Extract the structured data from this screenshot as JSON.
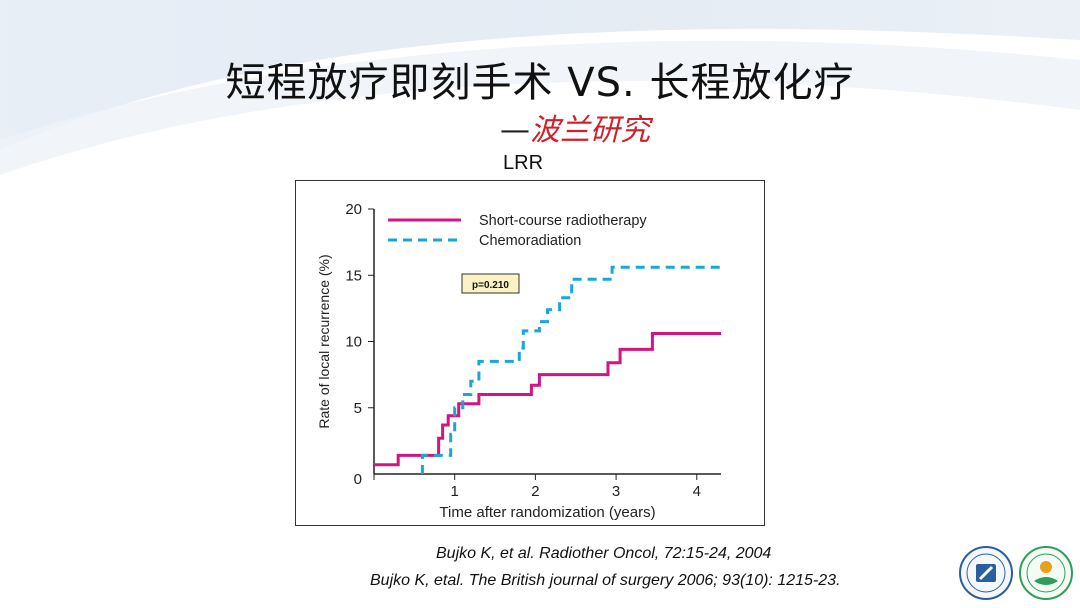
{
  "slide": {
    "title": "短程放疗即刻手术 VS. 长程放化疗",
    "subtitle_dash": "—",
    "subtitle_red": "波兰研究",
    "section_label": "LRR",
    "references": [
      "Bujko K, et al. Radiother Oncol, 72:15-24, 2004",
      "Bujko K, etal. The British journal of surgery 2006; 93(10): 1215-23."
    ],
    "logos": [
      "hospital-seal-icon",
      "nursing-association-icon"
    ]
  },
  "chart_data": {
    "type": "line",
    "xlabel": "Time after randomization (years)",
    "ylabel": "Rate of local recurrence (%)",
    "xlim": [
      0,
      4.3
    ],
    "ylim": [
      0,
      20
    ],
    "xticks": [
      0,
      1,
      2,
      3,
      4
    ],
    "yticks": [
      5,
      10,
      15,
      20
    ],
    "grid": false,
    "legend": "top-left",
    "annotation": "p=0.210",
    "series": [
      {
        "name": "Short-course radiotherapy",
        "color": "#d4157f",
        "style": "solid",
        "points": [
          [
            0,
            0.7
          ],
          [
            0.3,
            0.7
          ],
          [
            0.3,
            1.4
          ],
          [
            0.8,
            1.4
          ],
          [
            0.8,
            2.7
          ],
          [
            0.85,
            2.7
          ],
          [
            0.85,
            3.7
          ],
          [
            0.92,
            3.7
          ],
          [
            0.92,
            4.4
          ],
          [
            1.05,
            4.4
          ],
          [
            1.05,
            5.3
          ],
          [
            1.3,
            5.3
          ],
          [
            1.3,
            6.0
          ],
          [
            1.95,
            6.0
          ],
          [
            1.95,
            6.7
          ],
          [
            2.05,
            6.7
          ],
          [
            2.05,
            7.5
          ],
          [
            2.9,
            7.5
          ],
          [
            2.9,
            8.4
          ],
          [
            3.05,
            8.4
          ],
          [
            3.05,
            9.4
          ],
          [
            3.45,
            9.4
          ],
          [
            3.45,
            10.6
          ],
          [
            4.3,
            10.6
          ]
        ]
      },
      {
        "name": "Chemoradiation",
        "color": "#1aa6d6",
        "style": "dashed",
        "points": [
          [
            0.6,
            0
          ],
          [
            0.6,
            1.4
          ],
          [
            0.95,
            1.4
          ],
          [
            0.95,
            3.0
          ],
          [
            1.0,
            3.0
          ],
          [
            1.0,
            5.0
          ],
          [
            1.1,
            5.0
          ],
          [
            1.1,
            6.0
          ],
          [
            1.2,
            6.0
          ],
          [
            1.2,
            7.0
          ],
          [
            1.3,
            7.0
          ],
          [
            1.3,
            8.5
          ],
          [
            1.8,
            8.5
          ],
          [
            1.8,
            9.5
          ],
          [
            1.85,
            9.5
          ],
          [
            1.85,
            10.8
          ],
          [
            2.05,
            10.8
          ],
          [
            2.05,
            11.5
          ],
          [
            2.15,
            11.5
          ],
          [
            2.15,
            12.4
          ],
          [
            2.3,
            12.4
          ],
          [
            2.3,
            13.3
          ],
          [
            2.45,
            13.3
          ],
          [
            2.45,
            14.7
          ],
          [
            2.95,
            14.7
          ],
          [
            2.95,
            15.6
          ],
          [
            4.3,
            15.6
          ]
        ]
      }
    ]
  }
}
